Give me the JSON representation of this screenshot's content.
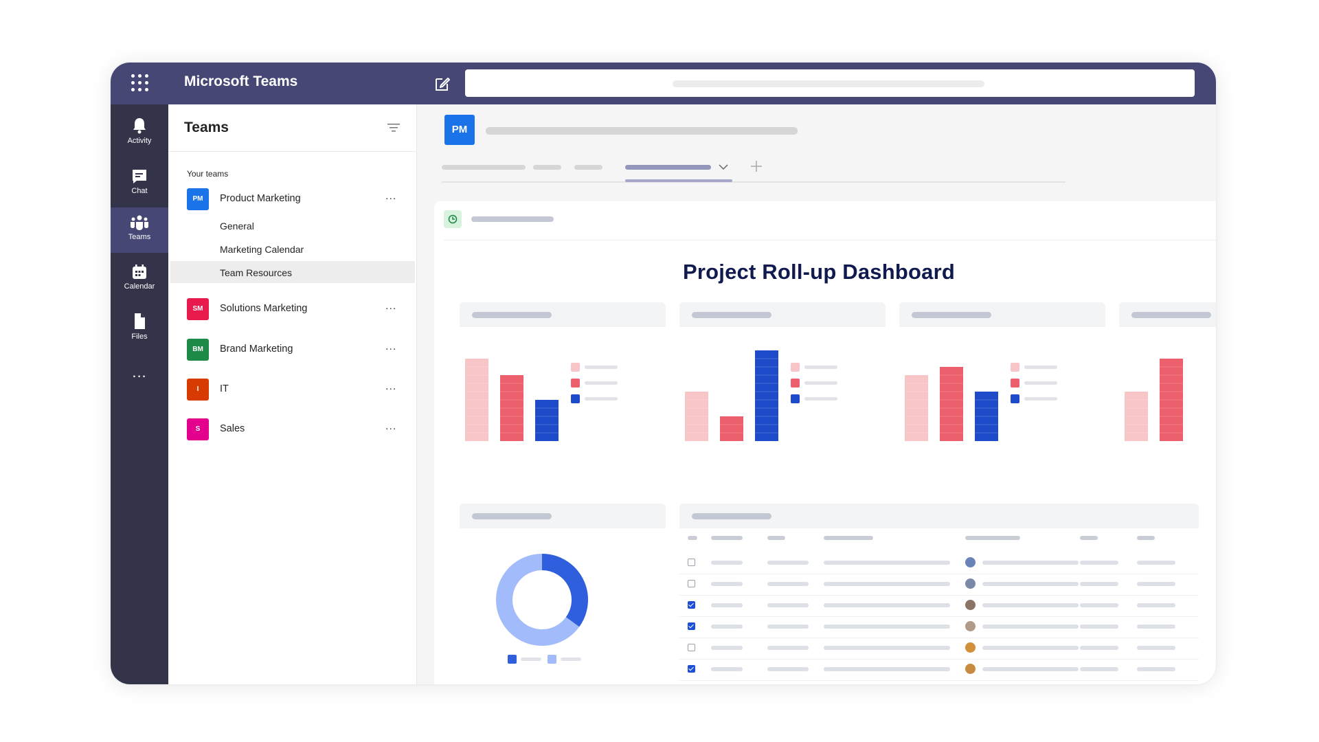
{
  "app": {
    "title": "Microsoft Teams",
    "accent": "#464775",
    "rail_bg": "#33344a"
  },
  "rail": {
    "items": [
      {
        "label": "Activity",
        "icon": "bell-icon"
      },
      {
        "label": "Chat",
        "icon": "chat-icon"
      },
      {
        "label": "Teams",
        "icon": "teams-icon",
        "active": true
      },
      {
        "label": "Calendar",
        "icon": "calendar-icon"
      },
      {
        "label": "Files",
        "icon": "file-icon"
      }
    ],
    "more": "..."
  },
  "panel": {
    "title": "Teams",
    "section_label": "Your teams",
    "teams": [
      {
        "initials": "PM",
        "name": "Product Marketing",
        "color": "#1a73e8",
        "more": "...",
        "channels": [
          "General",
          "Marketing Calendar",
          "Team Resources"
        ],
        "selected_channel": "Team Resources"
      },
      {
        "initials": "SM",
        "name": "Solutions Marketing",
        "color": "#e8194c",
        "more": "..."
      },
      {
        "initials": "BM",
        "name": "Brand Marketing",
        "color": "#1e8a47",
        "more": "..."
      },
      {
        "initials": "I",
        "name": "IT",
        "color": "#d83b01",
        "more": "..."
      },
      {
        "initials": "S",
        "name": "Sales",
        "color": "#e3008c",
        "more": "..."
      }
    ]
  },
  "channel_header": {
    "badge": "PM",
    "badge_color": "#1a73e8"
  },
  "dashboard": {
    "title": "Project Roll-up Dashboard",
    "series_colors": [
      "#f8c6c9",
      "#ec5f6c",
      "#1e4bc9"
    ],
    "donut_colors": [
      "#2f5fdc",
      "#a1bbfb"
    ],
    "table": {
      "rows": [
        {
          "checked": false,
          "avatar_color": "#6b84b8"
        },
        {
          "checked": false,
          "avatar_color": "#7a8aa6"
        },
        {
          "checked": true,
          "avatar_color": "#8a7466"
        },
        {
          "checked": true,
          "avatar_color": "#b09a8a"
        },
        {
          "checked": false,
          "avatar_color": "#d1903a"
        },
        {
          "checked": true,
          "avatar_color": "#c88a3e"
        }
      ]
    }
  },
  "chart_data": [
    {
      "type": "bar",
      "categories": [
        "",
        "",
        ""
      ],
      "values": [
        100,
        80,
        50
      ],
      "colors": [
        "#f8c6c9",
        "#ec5f6c",
        "#1e4bc9"
      ],
      "legend": "right"
    },
    {
      "type": "bar",
      "categories": [
        "",
        "",
        ""
      ],
      "values": [
        60,
        30,
        110
      ],
      "colors": [
        "#f8c6c9",
        "#ec5f6c",
        "#1e4bc9"
      ],
      "legend": "right"
    },
    {
      "type": "bar",
      "categories": [
        "",
        "",
        ""
      ],
      "values": [
        80,
        90,
        60
      ],
      "colors": [
        "#f8c6c9",
        "#ec5f6c",
        "#1e4bc9"
      ],
      "legend": "right"
    },
    {
      "type": "bar",
      "categories": [
        "",
        ""
      ],
      "values": [
        60,
        100
      ],
      "colors": [
        "#f8c6c9",
        "#ec5f6c"
      ]
    },
    {
      "type": "pie",
      "values": [
        35,
        65
      ],
      "colors": [
        "#2f5fdc",
        "#a1bbfb"
      ],
      "legend": "bottom"
    }
  ]
}
